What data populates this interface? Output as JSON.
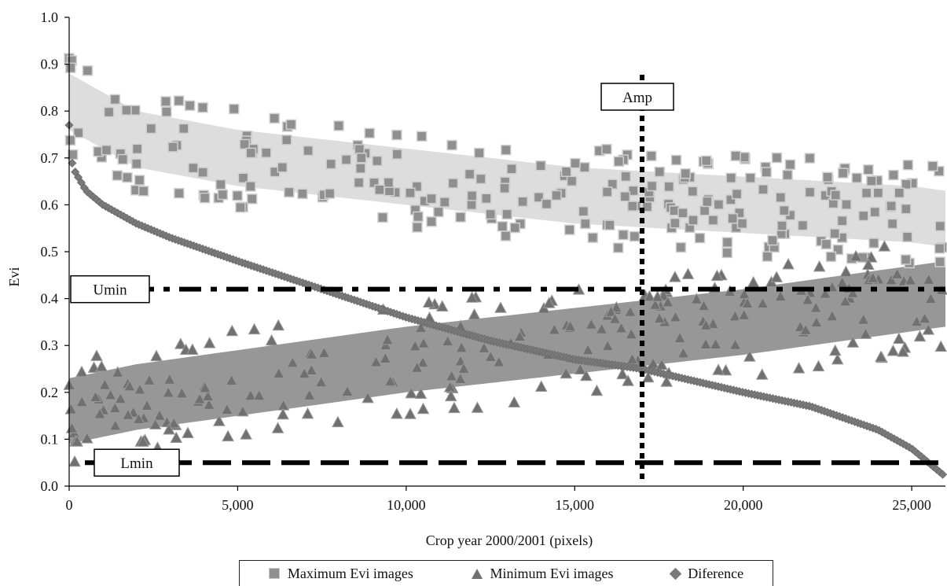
{
  "chart_data": {
    "type": "scatter",
    "title": "",
    "xlabel": "Crop  year 2000/2001 (pixels)",
    "ylabel": "Evi",
    "xlim": [
      0,
      26000
    ],
    "ylim": [
      0.0,
      1.0
    ],
    "x_ticks": [
      "0",
      "5,000",
      "10,000",
      "15,000",
      "20,000",
      "25,000"
    ],
    "x_tick_values": [
      0,
      5000,
      10000,
      15000,
      20000,
      25000
    ],
    "y_ticks": [
      "0.0",
      "0.1",
      "0.2",
      "0.3",
      "0.4",
      "0.5",
      "0.6",
      "0.7",
      "0.8",
      "0.9",
      "1.0"
    ],
    "y_tick_values": [
      0.0,
      0.1,
      0.2,
      0.3,
      0.4,
      0.5,
      0.6,
      0.7,
      0.8,
      0.9,
      1.0
    ],
    "grid": false,
    "legend_position": "bottom",
    "series": [
      {
        "name": "Maximum Evi images",
        "marker": "square",
        "color": "#8f8f8f",
        "band_color": "#d9d9d9",
        "trend": {
          "x": [
            0,
            2000,
            5000,
            10000,
            15000,
            20000,
            25000,
            26000
          ],
          "y": [
            0.82,
            0.74,
            0.7,
            0.66,
            0.62,
            0.6,
            0.58,
            0.57
          ]
        }
      },
      {
        "name": "Minimum Evi images",
        "marker": "triangle",
        "color": "#707070",
        "band_color": "#8c8c8c",
        "trend": {
          "x": [
            0,
            2000,
            5000,
            10000,
            15000,
            20000,
            25000,
            26000
          ],
          "y": [
            0.16,
            0.19,
            0.22,
            0.27,
            0.31,
            0.35,
            0.4,
            0.41
          ]
        }
      },
      {
        "name": "Diference",
        "marker": "diamond",
        "color": "#7a7a7a",
        "x": [
          0,
          100,
          500,
          1000,
          2000,
          3000,
          5000,
          7500,
          10000,
          12500,
          15000,
          17000,
          20000,
          22000,
          24000,
          25000,
          25500,
          26000
        ],
        "y": [
          0.77,
          0.68,
          0.63,
          0.6,
          0.56,
          0.53,
          0.48,
          0.42,
          0.36,
          0.31,
          0.27,
          0.25,
          0.2,
          0.17,
          0.12,
          0.08,
          0.05,
          0.02
        ]
      }
    ],
    "reference_lines": [
      {
        "label": "Umin",
        "orientation": "horizontal",
        "value": 0.42,
        "style": "dash-dot"
      },
      {
        "label": "Lmin",
        "orientation": "horizontal",
        "value": 0.05,
        "style": "dashed"
      },
      {
        "label": "Amp",
        "orientation": "vertical",
        "value": 17000,
        "style": "dotted"
      }
    ]
  },
  "legend": {
    "items": [
      {
        "label": "Maximum Evi images"
      },
      {
        "label": "Minimum Evi images"
      },
      {
        "label": "Diference"
      }
    ]
  }
}
